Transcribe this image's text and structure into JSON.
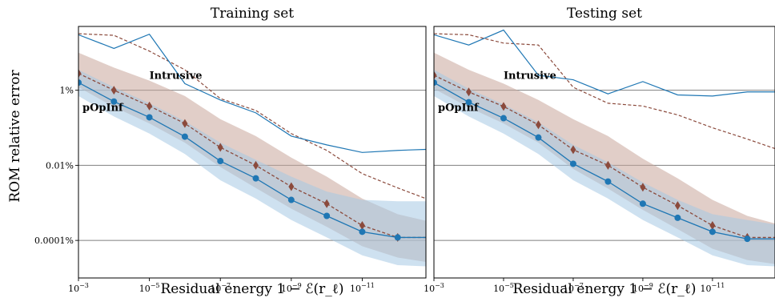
{
  "chart_data": [
    {
      "type": "line",
      "title": "Training set",
      "xlabel": "Residual energy 1 − ℰ(r_ℓ)",
      "ylabel": "ROM relative error",
      "xscale": "log",
      "xaxis_direction": "decreasing",
      "yscale": "log",
      "xlim": [
        0.001,
        1.6e-13
      ],
      "ylim": [
        1e-07,
        0.5
      ],
      "grid": "y-major",
      "xticks": [
        {
          "value": 0.001,
          "exponent": "−3"
        },
        {
          "value": 1e-05,
          "exponent": "−5"
        },
        {
          "value": 1e-07,
          "exponent": "−7"
        },
        {
          "value": 1e-09,
          "exponent": "−9"
        },
        {
          "value": 1e-11,
          "exponent": "−11"
        }
      ],
      "yticks": [
        {
          "value": 0.01,
          "label": "1%"
        },
        {
          "value": 0.0001,
          "label": "0.01%"
        },
        {
          "value": 1e-06,
          "label": "0.0001%"
        }
      ],
      "x": [
        0.001,
        0.0001,
        1e-05,
        1e-06,
        1e-07,
        1e-08,
        1e-09,
        1e-10,
        1e-11,
        1e-12,
        1e-13
      ],
      "series": [
        {
          "name": "Intrusive",
          "role": "upper-band-edge",
          "style": "dashed",
          "color": "#8b4a3c",
          "values": [
            0.32,
            0.29,
            0.11,
            0.035,
            0.006,
            0.0029,
            0.0007,
            0.00025,
            6e-05,
            2.5e-05,
            1.1e-05
          ]
        },
        {
          "name": "",
          "role": "upper-band-edge",
          "style": "solid",
          "color": "#1f77b4",
          "values": [
            0.3,
            0.13,
            0.31,
            0.015,
            0.0055,
            0.0025,
            0.0006,
            0.00035,
            0.00022,
            0.00025,
            0.00027
          ]
        },
        {
          "name": "Intrusive",
          "role": "median",
          "style": "dashed",
          "marker": "diamond",
          "color": "#8b4a3c",
          "values": [
            0.028,
            0.01,
            0.0038,
            0.0013,
            0.0003,
            0.0001,
            2.7e-05,
            9.5e-06,
            2.5e-06,
            1.2e-06,
            1.2e-06
          ]
        },
        {
          "name": "pOpInf",
          "role": "median",
          "style": "solid",
          "marker": "circle",
          "color": "#1f77b4",
          "values": [
            0.016,
            0.005,
            0.0019,
            0.00058,
            0.00013,
            4.5e-05,
            1.2e-05,
            4.5e-06,
            1.7e-06,
            1.2e-06,
            1.2e-06
          ]
        },
        {
          "name": "Intrusive",
          "role": "band",
          "color": "#c9a59b",
          "upper": [
            0.1,
            0.04,
            0.018,
            0.007,
            0.0017,
            0.0006,
            0.00016,
            5e-05,
            1.3e-05,
            5e-06,
            3e-06
          ],
          "lower": [
            0.012,
            0.0036,
            0.0013,
            0.0004,
            9e-05,
            2.5e-05,
            7e-06,
            2.3e-06,
            7e-07,
            3.5e-07,
            2.5e-07
          ]
        },
        {
          "name": "pOpInf",
          "role": "band",
          "color": "#a6c8e4",
          "upper": [
            0.035,
            0.012,
            0.0045,
            0.0015,
            0.0004,
            0.00014,
            5e-05,
            2e-05,
            1.2e-05,
            1.1e-05,
            1.1e-05
          ],
          "lower": [
            0.007,
            0.002,
            0.0007,
            0.0002,
            4e-05,
            1.3e-05,
            3.5e-06,
            1.2e-06,
            4e-07,
            2.2e-07,
            2e-07
          ]
        }
      ],
      "annotations": [
        {
          "text": "Intrusive",
          "color": "#8b4a3c",
          "x": 1e-05,
          "y": 0.02
        },
        {
          "text": "pOpInf",
          "color": "#1f77b4",
          "x": 0.001,
          "y": 0.0028
        }
      ]
    },
    {
      "type": "line",
      "title": "Testing set",
      "xlabel": "Residual energy 1 − ℰ(r_ℓ)",
      "xscale": "log",
      "xaxis_direction": "decreasing",
      "yscale": "log",
      "xlim": [
        0.001,
        1.6e-13
      ],
      "ylim": [
        1e-07,
        0.5
      ],
      "grid": "y-major",
      "xticks": [
        {
          "value": 0.001,
          "exponent": "−3"
        },
        {
          "value": 1e-05,
          "exponent": "−5"
        },
        {
          "value": 1e-07,
          "exponent": "−7"
        },
        {
          "value": 1e-09,
          "exponent": "−9"
        },
        {
          "value": 1e-11,
          "exponent": "−11"
        }
      ],
      "x": [
        0.001,
        0.0001,
        1e-05,
        1e-06,
        1e-07,
        1e-08,
        1e-09,
        1e-10,
        1e-11,
        1e-12,
        1e-13
      ],
      "series": [
        {
          "name": "Intrusive",
          "role": "upper-band-edge",
          "style": "dashed",
          "color": "#8b4a3c",
          "values": [
            0.32,
            0.3,
            0.18,
            0.16,
            0.012,
            0.0045,
            0.0038,
            0.0022,
            0.001,
            0.0005,
            0.00024
          ]
        },
        {
          "name": "",
          "role": "upper-band-edge",
          "style": "solid",
          "color": "#1f77b4",
          "values": [
            0.3,
            0.16,
            0.4,
            0.025,
            0.019,
            0.008,
            0.017,
            0.0075,
            0.007,
            0.009,
            0.009
          ]
        },
        {
          "name": "Intrusive",
          "role": "median",
          "style": "dashed",
          "marker": "diamond",
          "color": "#8b4a3c",
          "values": [
            0.025,
            0.009,
            0.0037,
            0.0012,
            0.00026,
            0.0001,
            2.6e-05,
            8.5e-06,
            2.5e-06,
            1.2e-06,
            1.2e-06
          ]
        },
        {
          "name": "pOpInf",
          "role": "median",
          "style": "solid",
          "marker": "circle",
          "color": "#1f77b4",
          "values": [
            0.016,
            0.0048,
            0.0018,
            0.00055,
            0.00011,
            3.7e-05,
            9.5e-06,
            4e-06,
            1.7e-06,
            1.1e-06,
            1.1e-06
          ]
        },
        {
          "name": "Intrusive",
          "role": "band",
          "color": "#c9a59b",
          "upper": [
            0.1,
            0.035,
            0.015,
            0.0055,
            0.0017,
            0.0006,
            0.00015,
            4.5e-05,
            1.2e-05,
            4.5e-06,
            2.5e-06
          ],
          "lower": [
            0.011,
            0.0035,
            0.0013,
            0.0004,
            8e-05,
            2.4e-05,
            6.5e-06,
            2e-06,
            6e-07,
            3e-07,
            2.2e-07
          ]
        },
        {
          "name": "pOpInf",
          "role": "band",
          "color": "#a6c8e4",
          "upper": [
            0.035,
            0.011,
            0.0042,
            0.0014,
            0.00035,
            0.00012,
            3.5e-05,
            1.2e-05,
            5e-06,
            3.5e-06,
            2.5e-06
          ],
          "lower": [
            0.007,
            0.002,
            0.0007,
            0.0002,
            4e-05,
            1.3e-05,
            3.5e-06,
            1.2e-06,
            4e-07,
            2.2e-07,
            2e-07
          ]
        }
      ],
      "annotations": [
        {
          "text": "Intrusive",
          "color": "#8b4a3c",
          "x": 1e-05,
          "y": 0.02
        },
        {
          "text": "pOpInf",
          "color": "#1f77b4",
          "x": 0.001,
          "y": 0.0028
        }
      ]
    }
  ]
}
